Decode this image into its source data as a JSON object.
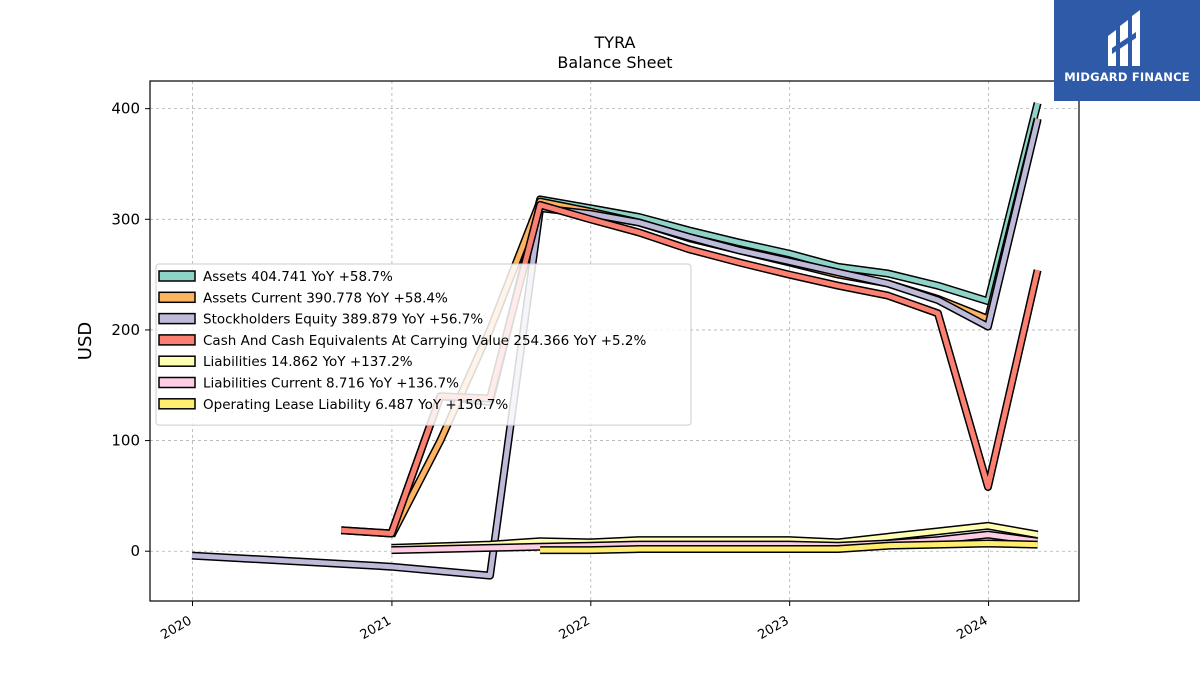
{
  "chart_data": {
    "type": "line",
    "title": "TYRA",
    "subtitle": "Balance  Sheet",
    "ylabel": "USD",
    "xlabel": "",
    "ylim": [
      -45,
      425
    ],
    "xlim": [
      "2019-10-15",
      "2024-06-15"
    ],
    "yticks": [
      0,
      100,
      200,
      300,
      400
    ],
    "xticks": [
      "2020-01-01",
      "2021-01-01",
      "2022-01-01",
      "2023-01-01",
      "2024-01-01"
    ],
    "xtick_labels": [
      "2020",
      "2021",
      "2022",
      "2023",
      "2024"
    ],
    "grid": true,
    "legend_position": "center-left",
    "series": [
      {
        "name": "Assets",
        "label": "Assets  404.741 YoY +58.7%",
        "color": "#8dd3c7",
        "points": [
          [
            "2020-09-30",
            19
          ],
          [
            "2020-12-31",
            16
          ],
          [
            "2021-03-31",
            140
          ],
          [
            "2021-06-30",
            135
          ],
          [
            "2021-09-30",
            318
          ],
          [
            "2021-12-31",
            310
          ],
          [
            "2022-03-31",
            302
          ],
          [
            "2022-06-30",
            290
          ],
          [
            "2022-09-30",
            279
          ],
          [
            "2022-12-31",
            269
          ],
          [
            "2023-03-31",
            257
          ],
          [
            "2023-06-30",
            251
          ],
          [
            "2023-09-30",
            240
          ],
          [
            "2023-12-31",
            226
          ],
          [
            "2024-03-31",
            405
          ]
        ]
      },
      {
        "name": "Assets Current",
        "label": "Assets Current  390.778 YoY +58.4%",
        "color": "#fdb462",
        "points": [
          [
            "2020-12-31",
            14
          ],
          [
            "2021-03-31",
            100
          ],
          [
            "2021-06-30",
            200
          ],
          [
            "2021-09-30",
            316
          ],
          [
            "2021-12-31",
            307
          ],
          [
            "2022-03-31",
            297
          ],
          [
            "2022-06-30",
            283
          ],
          [
            "2022-09-30",
            272
          ],
          [
            "2022-12-31",
            261
          ],
          [
            "2023-03-31",
            250
          ],
          [
            "2023-06-30",
            242
          ],
          [
            "2023-09-30",
            228
          ],
          [
            "2023-12-31",
            210
          ],
          [
            "2024-03-31",
            391
          ]
        ]
      },
      {
        "name": "Stockholders Equity",
        "label": "Stockholders Equity  389.879 YoY +56.7%",
        "color": "#bebada",
        "points": [
          [
            "2019-12-31",
            -4
          ],
          [
            "2020-12-31",
            -14
          ],
          [
            "2021-03-31",
            -18
          ],
          [
            "2021-06-30",
            -22
          ],
          [
            "2021-09-30",
            310
          ],
          [
            "2021-12-31",
            305
          ],
          [
            "2022-03-31",
            297
          ],
          [
            "2022-06-30",
            284
          ],
          [
            "2022-09-30",
            272
          ],
          [
            "2022-12-31",
            262
          ],
          [
            "2023-03-31",
            252
          ],
          [
            "2023-06-30",
            242
          ],
          [
            "2023-09-30",
            227
          ],
          [
            "2023-12-31",
            203
          ],
          [
            "2024-03-31",
            390
          ]
        ]
      },
      {
        "name": "Cash And Cash Equivalents At Carrying Value",
        "label": "Cash And Cash Equivalents At Carrying Value  254.366 YoY +5.2%",
        "color": "#fb8072",
        "points": [
          [
            "2020-09-30",
            19
          ],
          [
            "2020-12-31",
            16
          ],
          [
            "2021-03-31",
            140
          ],
          [
            "2021-06-30",
            138
          ],
          [
            "2021-09-30",
            313
          ],
          [
            "2021-12-31",
            300
          ],
          [
            "2022-03-31",
            288
          ],
          [
            "2022-06-30",
            273
          ],
          [
            "2022-09-30",
            261
          ],
          [
            "2022-12-31",
            250
          ],
          [
            "2023-03-31",
            240
          ],
          [
            "2023-06-30",
            231
          ],
          [
            "2023-09-30",
            215
          ],
          [
            "2023-12-31",
            58
          ],
          [
            "2024-03-31",
            254
          ]
        ]
      },
      {
        "name": "Liabilities",
        "label": "Liabilities  14.862 YoY +137.2%",
        "color": "#ffffb3",
        "points": [
          [
            "2020-12-31",
            3
          ],
          [
            "2021-06-30",
            6
          ],
          [
            "2021-09-30",
            9
          ],
          [
            "2021-12-31",
            8
          ],
          [
            "2022-03-31",
            10
          ],
          [
            "2022-06-30",
            10
          ],
          [
            "2022-09-30",
            10
          ],
          [
            "2022-12-31",
            10
          ],
          [
            "2023-03-31",
            8
          ],
          [
            "2023-06-30",
            13
          ],
          [
            "2023-09-30",
            18
          ],
          [
            "2023-12-31",
            23
          ],
          [
            "2024-03-31",
            15
          ]
        ]
      },
      {
        "name": "Liabilities Current",
        "label": "Liabilities Current  8.716 YoY +136.7%",
        "color": "#fccde5",
        "points": [
          [
            "2020-12-31",
            1
          ],
          [
            "2021-06-30",
            3
          ],
          [
            "2021-09-30",
            4
          ],
          [
            "2021-12-31",
            5
          ],
          [
            "2022-03-31",
            6
          ],
          [
            "2022-06-30",
            6
          ],
          [
            "2022-09-30",
            6
          ],
          [
            "2022-12-31",
            6
          ],
          [
            "2023-03-31",
            5
          ],
          [
            "2023-06-30",
            7
          ],
          [
            "2023-09-30",
            10
          ],
          [
            "2023-12-31",
            15
          ],
          [
            "2024-03-31",
            9
          ]
        ]
      },
      {
        "name": "Operating Lease Liability",
        "label": "Operating Lease Liability  6.487 YoY +150.7%",
        "color": "#ffed6f",
        "points": [
          [
            "2021-09-30",
            1
          ],
          [
            "2021-12-31",
            1
          ],
          [
            "2022-03-31",
            2
          ],
          [
            "2022-06-30",
            2
          ],
          [
            "2022-09-30",
            2
          ],
          [
            "2022-12-31",
            2
          ],
          [
            "2023-03-31",
            2
          ],
          [
            "2023-06-30",
            5
          ],
          [
            "2023-09-30",
            6
          ],
          [
            "2023-12-31",
            7
          ],
          [
            "2024-03-31",
            6
          ]
        ]
      }
    ]
  },
  "logo": {
    "text": "MIDGARD FINANCE",
    "color": "#2f5aa8"
  }
}
